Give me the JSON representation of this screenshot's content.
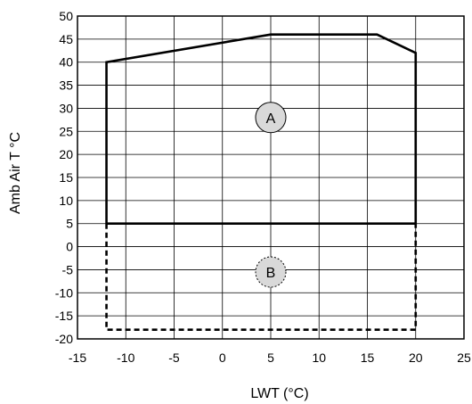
{
  "chart_data": {
    "type": "line",
    "title": "",
    "xlabel": "LWT (°C)",
    "ylabel": "Amb Air T °C",
    "xlim": [
      -15,
      25
    ],
    "ylim": [
      -20,
      50
    ],
    "x_ticks": [
      -15,
      -10,
      -5,
      0,
      5,
      10,
      15,
      20,
      25
    ],
    "y_ticks": [
      -20,
      -15,
      -10,
      -5,
      0,
      5,
      10,
      15,
      20,
      25,
      30,
      35,
      40,
      45,
      50
    ],
    "grid": true,
    "legend": "none",
    "series": [
      {
        "style": "solid",
        "color": "#000000",
        "points": [
          [
            -12,
            5
          ],
          [
            -12,
            40
          ],
          [
            5,
            46
          ],
          [
            16,
            46
          ],
          [
            20,
            42
          ],
          [
            20,
            5
          ],
          [
            -12,
            5
          ]
        ]
      },
      {
        "style": "dashed",
        "color": "#000000",
        "points": [
          [
            -12,
            5
          ],
          [
            -12,
            -18
          ],
          [
            20,
            -18
          ],
          [
            20,
            5
          ]
        ]
      }
    ],
    "annotations": [
      {
        "text": "A",
        "x": 5,
        "y": 28,
        "border": "solid",
        "fill": "#d9d9d9"
      },
      {
        "text": "B",
        "x": 5,
        "y": -5.5,
        "border": "dashed",
        "fill": "#d9d9d9"
      }
    ]
  }
}
